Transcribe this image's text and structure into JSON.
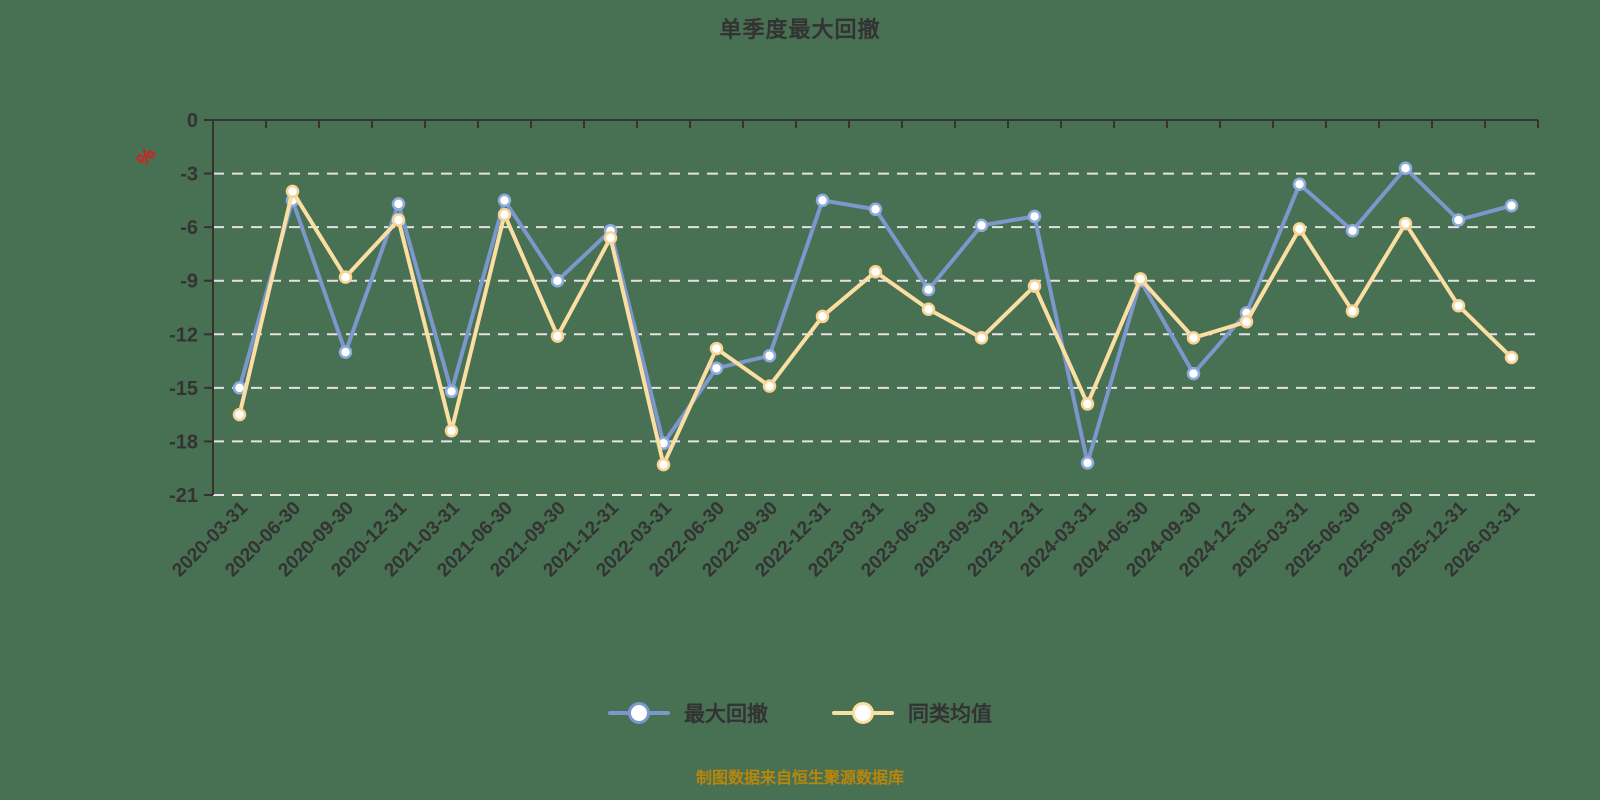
{
  "title": "单季度最大回撤",
  "y_axis_unit": "%",
  "footer": {
    "text": "制图数据来自恒生聚源数据库",
    "color": "#b8860b"
  },
  "colors": {
    "background": "#487052",
    "axis": "#333333",
    "grid": "#e3e3e3",
    "tick_text": "#333333",
    "unit_red": "#e01b1b"
  },
  "chart_data": {
    "type": "line",
    "title": "单季度最大回撤",
    "y_unit": "%",
    "ylim": [
      -21,
      0
    ],
    "yticks": [
      0,
      -3,
      -6,
      -9,
      -12,
      -15,
      -18,
      -21
    ],
    "grid": "horizontal dashed white lines",
    "legend_position": "bottom",
    "categories": [
      "2020-03-31",
      "2020-06-30",
      "2020-09-30",
      "2020-12-31",
      "2021-03-31",
      "2021-06-30",
      "2021-09-30",
      "2021-12-31",
      "2022-03-31",
      "2022-06-30",
      "2022-09-30",
      "2022-12-31",
      "2023-03-31",
      "2023-06-30",
      "2023-09-30",
      "2023-12-31",
      "2024-03-31",
      "2024-06-30",
      "2024-09-30",
      "2024-12-31",
      "2025-03-31",
      "2025-06-30",
      "2025-09-30",
      "2025-12-31",
      "2026-03-31"
    ],
    "series": [
      {
        "name": "最大回撤",
        "color": "#7b97cc",
        "marker_ring": "#8fabdc",
        "values": [
          -15.0,
          -4.5,
          -13.0,
          -4.7,
          -15.2,
          -4.5,
          -9.0,
          -6.2,
          -18.1,
          -13.9,
          -13.2,
          -4.5,
          -5.0,
          -9.5,
          -5.9,
          -5.4,
          -19.2,
          -9.0,
          -14.2,
          -10.8,
          -3.6,
          -6.2,
          -2.7,
          -5.6,
          -4.8
        ]
      },
      {
        "name": "同类均值",
        "color": "#fbdfa2",
        "marker_ring": "#f7d494",
        "values": [
          -16.5,
          -4.0,
          -8.8,
          -5.6,
          -17.4,
          -5.3,
          -12.1,
          -6.6,
          -19.3,
          -12.8,
          -14.9,
          -11.0,
          -8.5,
          -10.6,
          -12.2,
          -9.3,
          -15.9,
          -8.9,
          -12.2,
          -11.3,
          -6.1,
          -10.7,
          -5.8,
          -10.4,
          -13.3
        ]
      }
    ]
  }
}
